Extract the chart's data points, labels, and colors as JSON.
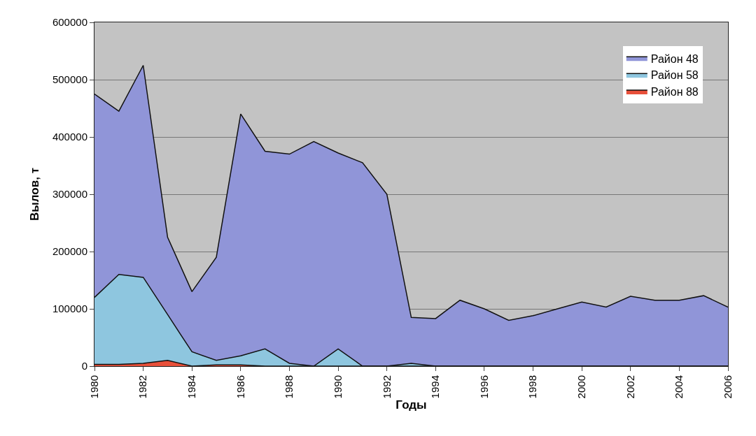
{
  "chart_data": {
    "type": "area",
    "xlabel": "Годы",
    "ylabel": "Вылов, т",
    "x": [
      1980,
      1981,
      1982,
      1983,
      1984,
      1985,
      1986,
      1987,
      1988,
      1989,
      1990,
      1991,
      1992,
      1993,
      1994,
      1995,
      1996,
      1997,
      1998,
      1999,
      2000,
      2001,
      2002,
      2003,
      2004,
      2005,
      2006
    ],
    "series": [
      {
        "name": "Район 48",
        "color": "#9095d8",
        "values": [
          475000,
          445000,
          525000,
          225000,
          130000,
          190000,
          440000,
          375000,
          370000,
          392000,
          372000,
          355000,
          300000,
          85000,
          83000,
          115000,
          100000,
          80000,
          88000,
          100000,
          112000,
          103000,
          122000,
          115000,
          115000,
          123000,
          103000
        ]
      },
      {
        "name": "Район 58",
        "color": "#8ec6df",
        "values": [
          120000,
          160000,
          155000,
          90000,
          25000,
          10000,
          18000,
          30000,
          5000,
          0,
          30000,
          0,
          0,
          5000,
          0,
          0,
          0,
          0,
          0,
          0,
          0,
          0,
          0,
          0,
          0,
          0,
          0
        ]
      },
      {
        "name": "Район 88",
        "color": "#e8503a",
        "values": [
          3000,
          3000,
          5000,
          10000,
          0,
          2000,
          2000,
          0,
          0,
          0,
          0,
          0,
          0,
          0,
          0,
          0,
          0,
          0,
          0,
          0,
          0,
          0,
          0,
          0,
          0,
          0,
          0
        ]
      }
    ],
    "xlim": [
      1980,
      2006
    ],
    "xticks": [
      1980,
      1982,
      1984,
      1986,
      1988,
      1990,
      1992,
      1994,
      1996,
      1998,
      2000,
      2002,
      2004,
      2006
    ],
    "ylim": [
      0,
      600000
    ],
    "yticks": [
      0,
      100000,
      200000,
      300000,
      400000,
      500000,
      600000
    ],
    "grid": "y",
    "legend": "top right"
  }
}
